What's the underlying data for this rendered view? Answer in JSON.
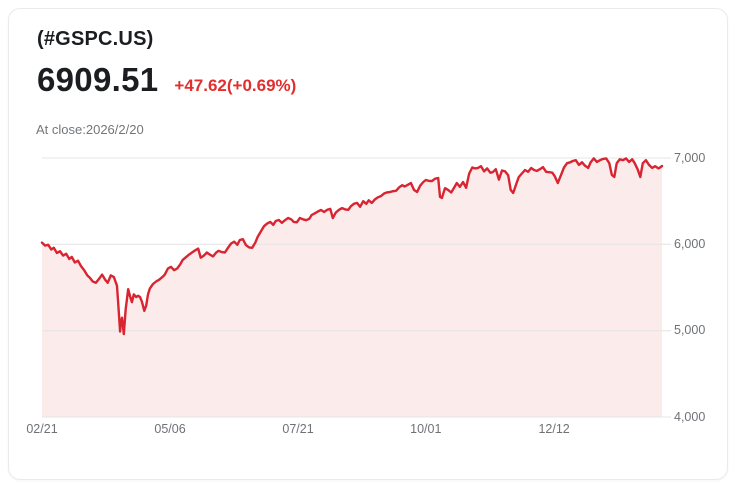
{
  "header": {
    "symbol": "(#GSPC.US)",
    "price": "6909.51",
    "change": "+47.62(+0.69%)",
    "close_label": "At close:2026/2/20"
  },
  "colors": {
    "line": "#d92431",
    "fill": "#fbeceb",
    "grid": "#e4e4e4",
    "axis_text": "#6e7276",
    "change_text": "#e12f2f",
    "title_text": "#1b1d20",
    "card_border": "#e8eaee"
  },
  "chart_data": {
    "type": "area",
    "title": "#GSPC.US one-year price history",
    "xlabel": "",
    "ylabel": "",
    "ylim": [
      4000,
      7000
    ],
    "grid": true,
    "legend": "none",
    "y_ticks": [
      {
        "value": 7000,
        "label": "7,000"
      },
      {
        "value": 6000,
        "label": "6,000"
      },
      {
        "value": 5000,
        "label": "5,000"
      },
      {
        "value": 4000,
        "label": "4,000"
      }
    ],
    "x_ticks": [
      {
        "t": 0.0,
        "label": "02/21"
      },
      {
        "t": 0.2065,
        "label": "05/06"
      },
      {
        "t": 0.413,
        "label": "07/21"
      },
      {
        "t": 0.619,
        "label": "10/01"
      },
      {
        "t": 0.826,
        "label": "12/12"
      }
    ],
    "points": [
      [
        0.0,
        6020
      ],
      [
        0.005,
        5985
      ],
      [
        0.01,
        5995
      ],
      [
        0.015,
        5940
      ],
      [
        0.019,
        5960
      ],
      [
        0.024,
        5900
      ],
      [
        0.029,
        5920
      ],
      [
        0.034,
        5870
      ],
      [
        0.039,
        5890
      ],
      [
        0.044,
        5830
      ],
      [
        0.048,
        5855
      ],
      [
        0.053,
        5790
      ],
      [
        0.058,
        5810
      ],
      [
        0.063,
        5745
      ],
      [
        0.068,
        5700
      ],
      [
        0.073,
        5640
      ],
      [
        0.077,
        5615
      ],
      [
        0.082,
        5570
      ],
      [
        0.087,
        5555
      ],
      [
        0.092,
        5600
      ],
      [
        0.097,
        5650
      ],
      [
        0.102,
        5590
      ],
      [
        0.106,
        5555
      ],
      [
        0.111,
        5640
      ],
      [
        0.116,
        5620
      ],
      [
        0.121,
        5520
      ],
      [
        0.124,
        5200
      ],
      [
        0.126,
        4990
      ],
      [
        0.127,
        5080
      ],
      [
        0.129,
        5150
      ],
      [
        0.132,
        4960
      ],
      [
        0.135,
        5250
      ],
      [
        0.139,
        5480
      ],
      [
        0.142,
        5400
      ],
      [
        0.145,
        5330
      ],
      [
        0.148,
        5420
      ],
      [
        0.152,
        5390
      ],
      [
        0.155,
        5405
      ],
      [
        0.158,
        5390
      ],
      [
        0.161,
        5340
      ],
      [
        0.165,
        5230
      ],
      [
        0.168,
        5290
      ],
      [
        0.171,
        5420
      ],
      [
        0.174,
        5490
      ],
      [
        0.179,
        5540
      ],
      [
        0.184,
        5570
      ],
      [
        0.189,
        5590
      ],
      [
        0.194,
        5620
      ],
      [
        0.198,
        5650
      ],
      [
        0.203,
        5720
      ],
      [
        0.208,
        5740
      ],
      [
        0.213,
        5700
      ],
      [
        0.218,
        5720
      ],
      [
        0.223,
        5770
      ],
      [
        0.227,
        5820
      ],
      [
        0.232,
        5850
      ],
      [
        0.237,
        5880
      ],
      [
        0.242,
        5905
      ],
      [
        0.247,
        5930
      ],
      [
        0.252,
        5950
      ],
      [
        0.256,
        5845
      ],
      [
        0.261,
        5870
      ],
      [
        0.266,
        5905
      ],
      [
        0.271,
        5880
      ],
      [
        0.276,
        5860
      ],
      [
        0.281,
        5905
      ],
      [
        0.285,
        5925
      ],
      [
        0.29,
        5910
      ],
      [
        0.295,
        5905
      ],
      [
        0.3,
        5960
      ],
      [
        0.305,
        6010
      ],
      [
        0.31,
        6030
      ],
      [
        0.315,
        5995
      ],
      [
        0.319,
        6050
      ],
      [
        0.324,
        6060
      ],
      [
        0.329,
        5990
      ],
      [
        0.334,
        5965
      ],
      [
        0.339,
        5960
      ],
      [
        0.344,
        6020
      ],
      [
        0.348,
        6090
      ],
      [
        0.353,
        6150
      ],
      [
        0.358,
        6210
      ],
      [
        0.363,
        6240
      ],
      [
        0.368,
        6260
      ],
      [
        0.373,
        6225
      ],
      [
        0.377,
        6270
      ],
      [
        0.382,
        6282
      ],
      [
        0.387,
        6250
      ],
      [
        0.392,
        6280
      ],
      [
        0.397,
        6305
      ],
      [
        0.402,
        6290
      ],
      [
        0.406,
        6260
      ],
      [
        0.411,
        6255
      ],
      [
        0.416,
        6305
      ],
      [
        0.421,
        6290
      ],
      [
        0.426,
        6280
      ],
      [
        0.431,
        6295
      ],
      [
        0.435,
        6340
      ],
      [
        0.44,
        6360
      ],
      [
        0.445,
        6380
      ],
      [
        0.45,
        6398
      ],
      [
        0.455,
        6375
      ],
      [
        0.46,
        6400
      ],
      [
        0.465,
        6410
      ],
      [
        0.469,
        6305
      ],
      [
        0.474,
        6370
      ],
      [
        0.479,
        6400
      ],
      [
        0.484,
        6420
      ],
      [
        0.489,
        6405
      ],
      [
        0.494,
        6400
      ],
      [
        0.498,
        6440
      ],
      [
        0.503,
        6470
      ],
      [
        0.508,
        6480
      ],
      [
        0.513,
        6435
      ],
      [
        0.518,
        6500
      ],
      [
        0.523,
        6470
      ],
      [
        0.527,
        6510
      ],
      [
        0.532,
        6480
      ],
      [
        0.537,
        6520
      ],
      [
        0.542,
        6545
      ],
      [
        0.547,
        6560
      ],
      [
        0.552,
        6590
      ],
      [
        0.556,
        6600
      ],
      [
        0.561,
        6605
      ],
      [
        0.566,
        6615
      ],
      [
        0.571,
        6620
      ],
      [
        0.576,
        6660
      ],
      [
        0.581,
        6685
      ],
      [
        0.585,
        6670
      ],
      [
        0.59,
        6690
      ],
      [
        0.595,
        6710
      ],
      [
        0.6,
        6630
      ],
      [
        0.605,
        6606
      ],
      [
        0.61,
        6680
      ],
      [
        0.615,
        6722
      ],
      [
        0.619,
        6745
      ],
      [
        0.624,
        6735
      ],
      [
        0.629,
        6734
      ],
      [
        0.634,
        6760
      ],
      [
        0.639,
        6768
      ],
      [
        0.642,
        6550
      ],
      [
        0.645,
        6537
      ],
      [
        0.65,
        6650
      ],
      [
        0.655,
        6630
      ],
      [
        0.66,
        6600
      ],
      [
        0.665,
        6660
      ],
      [
        0.669,
        6710
      ],
      [
        0.674,
        6665
      ],
      [
        0.679,
        6722
      ],
      [
        0.684,
        6655
      ],
      [
        0.689,
        6820
      ],
      [
        0.694,
        6890
      ],
      [
        0.698,
        6880
      ],
      [
        0.703,
        6884
      ],
      [
        0.708,
        6905
      ],
      [
        0.713,
        6845
      ],
      [
        0.718,
        6880
      ],
      [
        0.723,
        6830
      ],
      [
        0.727,
        6835
      ],
      [
        0.732,
        6870
      ],
      [
        0.737,
        6750
      ],
      [
        0.742,
        6855
      ],
      [
        0.747,
        6845
      ],
      [
        0.752,
        6800
      ],
      [
        0.756,
        6630
      ],
      [
        0.76,
        6595
      ],
      [
        0.765,
        6700
      ],
      [
        0.769,
        6780
      ],
      [
        0.774,
        6820
      ],
      [
        0.779,
        6861
      ],
      [
        0.784,
        6840
      ],
      [
        0.789,
        6884
      ],
      [
        0.794,
        6860
      ],
      [
        0.798,
        6850
      ],
      [
        0.803,
        6870
      ],
      [
        0.808,
        6895
      ],
      [
        0.813,
        6840
      ],
      [
        0.818,
        6835
      ],
      [
        0.823,
        6830
      ],
      [
        0.827,
        6790
      ],
      [
        0.832,
        6710
      ],
      [
        0.837,
        6800
      ],
      [
        0.842,
        6890
      ],
      [
        0.847,
        6940
      ],
      [
        0.852,
        6950
      ],
      [
        0.856,
        6965
      ],
      [
        0.861,
        6975
      ],
      [
        0.866,
        6920
      ],
      [
        0.871,
        6950
      ],
      [
        0.876,
        6910
      ],
      [
        0.881,
        6885
      ],
      [
        0.885,
        6950
      ],
      [
        0.89,
        6995
      ],
      [
        0.895,
        6955
      ],
      [
        0.9,
        6975
      ],
      [
        0.905,
        6990
      ],
      [
        0.91,
        6995
      ],
      [
        0.915,
        6940
      ],
      [
        0.919,
        6805
      ],
      [
        0.923,
        6780
      ],
      [
        0.927,
        6940
      ],
      [
        0.932,
        6985
      ],
      [
        0.937,
        6975
      ],
      [
        0.942,
        6995
      ],
      [
        0.947,
        6955
      ],
      [
        0.952,
        6985
      ],
      [
        0.956,
        6940
      ],
      [
        0.961,
        6865
      ],
      [
        0.965,
        6780
      ],
      [
        0.969,
        6940
      ],
      [
        0.974,
        6975
      ],
      [
        0.979,
        6920
      ],
      [
        0.984,
        6885
      ],
      [
        0.989,
        6905
      ],
      [
        0.994,
        6880
      ],
      [
        0.997,
        6890
      ],
      [
        1.0,
        6907
      ]
    ]
  }
}
